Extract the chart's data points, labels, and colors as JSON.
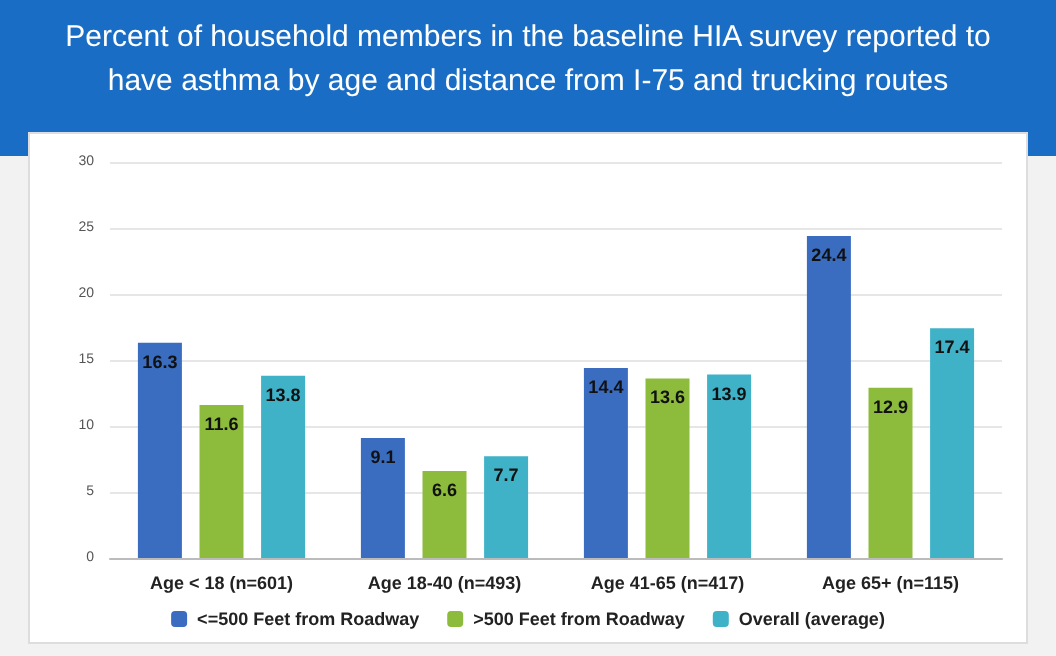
{
  "chart_data": {
    "type": "bar",
    "title": "Percent of household members in the baseline HIA survey reported to have asthma by age and distance from I-75 and trucking routes",
    "categories": [
      "Age < 18 (n=601)",
      "Age 18-40 (n=493)",
      "Age 41-65 (n=417)",
      "Age 65+ (n=115)"
    ],
    "series": [
      {
        "name": "<=500 Feet from Roadway",
        "color": "#3a6cc0",
        "values": [
          16.3,
          9.1,
          14.4,
          24.4
        ]
      },
      {
        "name": ">500 Feet from Roadway",
        "color": "#8dbb3c",
        "values": [
          11.6,
          6.6,
          13.6,
          12.9
        ]
      },
      {
        "name": "Overall (average)",
        "color": "#3fb2c8",
        "values": [
          13.8,
          7.7,
          13.9,
          17.4
        ]
      }
    ],
    "ylim": [
      0,
      30
    ],
    "yticks": [
      0,
      5,
      10,
      15,
      20,
      25,
      30
    ],
    "grid": "y",
    "legend": "bottom",
    "data_labels": true
  }
}
